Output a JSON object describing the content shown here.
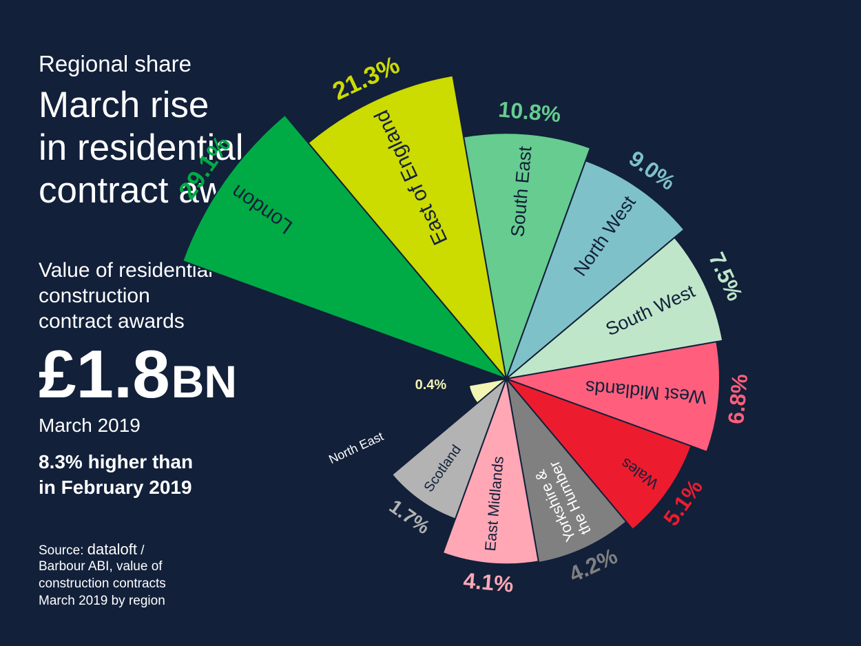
{
  "header": {
    "eyebrow": "Regional share",
    "headline_lines": [
      "March rise",
      "in residential",
      "contract awards"
    ],
    "subtitle_lines": [
      "Value of residential",
      "construction",
      "contract awards"
    ]
  },
  "headline_figure": {
    "value": "£1.8",
    "unit": "BN"
  },
  "period": "March 2019",
  "change_lines": [
    "8.3% higher than",
    "in February 2019"
  ],
  "source": {
    "label": "Source:",
    "brand": "dataloft",
    "separator": "/",
    "lines": [
      "Barbour ABI, value of",
      "construction contracts",
      "March 2019 by region"
    ]
  },
  "chart_data": {
    "type": "pie",
    "variant": "polar-area",
    "slices": [
      {
        "name": "London",
        "value": 29.1,
        "label": "29.1%",
        "color": "#00ab45"
      },
      {
        "name": "East of England",
        "value": 21.3,
        "label": "21.3%",
        "color": "#ccdb00"
      },
      {
        "name": "South East",
        "value": 10.8,
        "label": "10.8%",
        "color": "#66cc8f"
      },
      {
        "name": "North West",
        "value": 9.0,
        "label": "9.0%",
        "color": "#7fc1c9"
      },
      {
        "name": "South West",
        "value": 7.5,
        "label": "7.5%",
        "color": "#bfe6c9"
      },
      {
        "name": "West Midlands",
        "value": 6.8,
        "label": "6.8%",
        "color": "#ff5f7c"
      },
      {
        "name": "Wales",
        "value": 5.1,
        "label": "5.1%",
        "color": "#ec1c2e"
      },
      {
        "name": "Yorkshire & the Humber",
        "value": 4.2,
        "label": "4.2%",
        "color": "#808080"
      },
      {
        "name": "East Midlands",
        "value": 4.1,
        "label": "4.1%",
        "color": "#ffa7b5"
      },
      {
        "name": "Scotland",
        "value": 1.7,
        "label": "1.7%",
        "color": "#b3b3b3"
      },
      {
        "name": "North East",
        "value": 0.4,
        "label": "0.4%",
        "color": "#f2f5b3"
      }
    ],
    "label_colors": {
      "London": "#00ab45",
      "East of England": "#ccdb00",
      "South East": "#66cc8f",
      "North West": "#7fc1c9",
      "South West": "#bfe6c9",
      "West Midlands": "#ff5f7c",
      "Wales": "#ec1c2e",
      "Yorkshire & the Humber": "#808080",
      "East Midlands": "#ffa7b5",
      "Scotland": "#b3b3b3",
      "North East": "#f2f5b3"
    }
  }
}
